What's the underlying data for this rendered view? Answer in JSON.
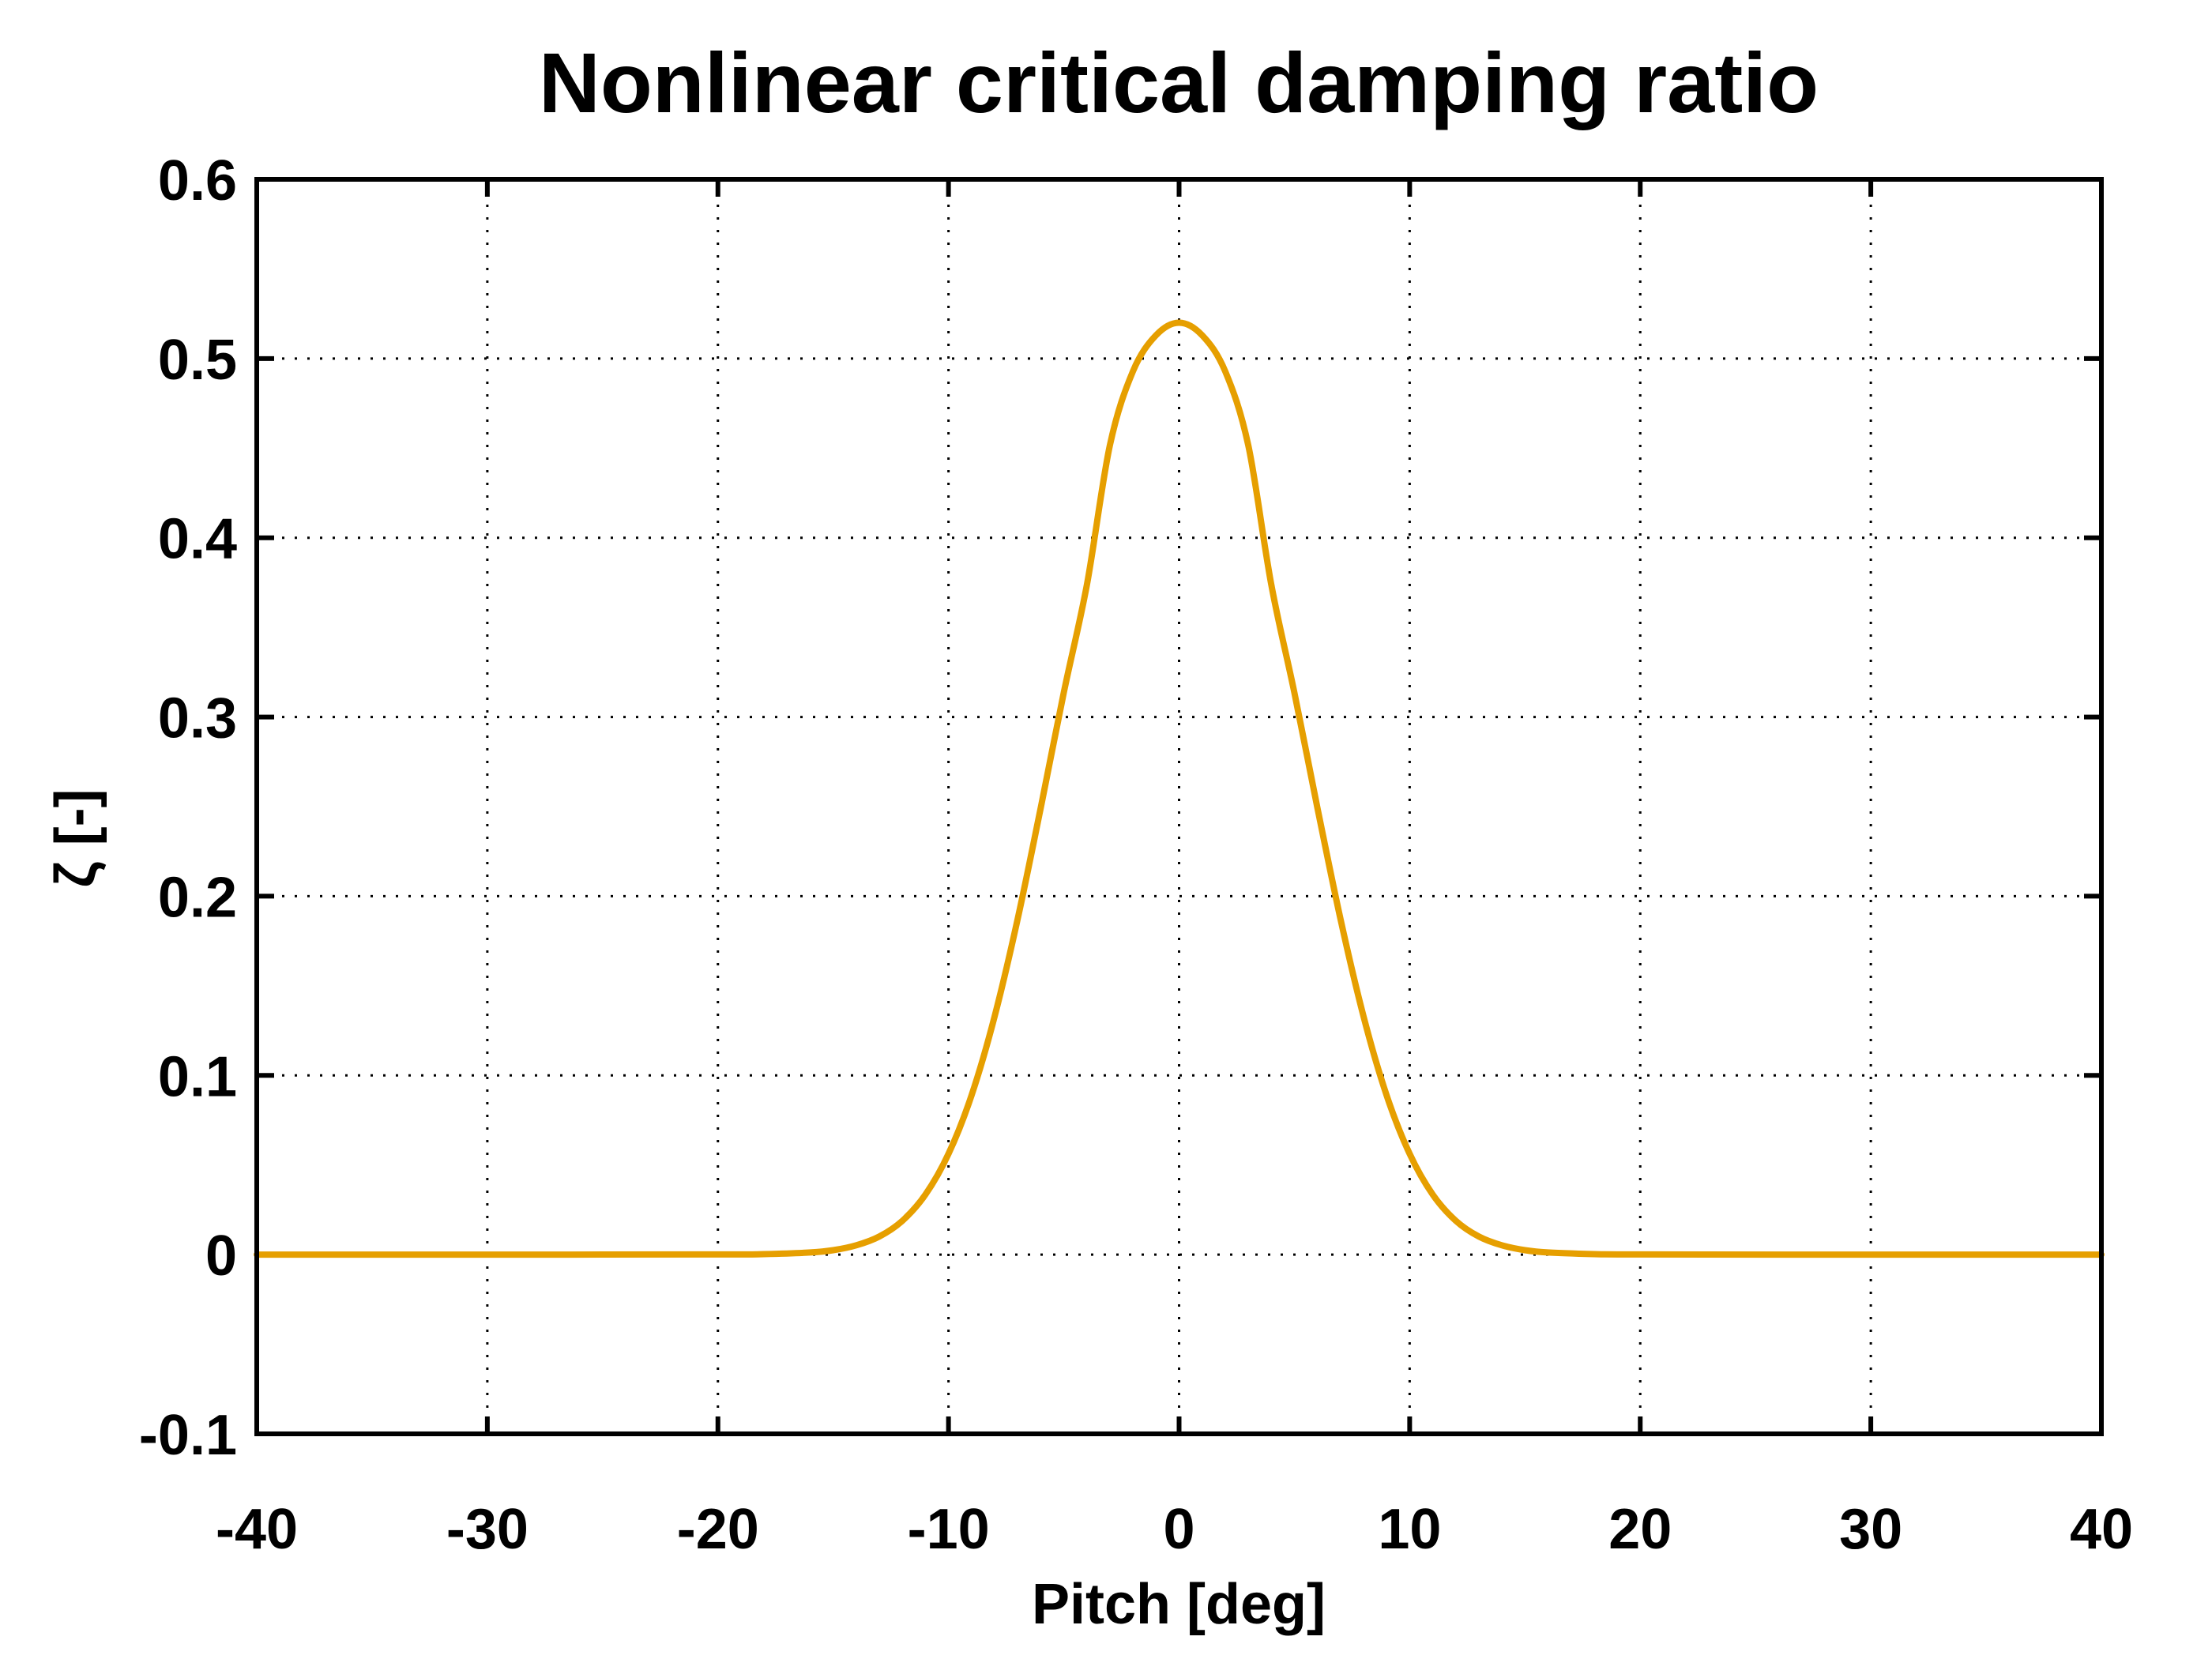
{
  "chart_data": {
    "type": "line",
    "title": "Nonlinear critical damping ratio",
    "xlabel": "Pitch [deg]",
    "ylabel": "ζ [-]",
    "xlim": [
      -40,
      40
    ],
    "ylim": [
      -0.1,
      0.6
    ],
    "xticks": [
      -40,
      -30,
      -20,
      -10,
      0,
      10,
      20,
      30,
      40
    ],
    "yticks": [
      -0.1,
      0,
      0.1,
      0.2,
      0.3,
      0.4,
      0.5,
      0.6
    ],
    "xtick_labels": [
      "-40",
      "-30",
      "-20",
      "-10",
      "0",
      "10",
      "20",
      "30",
      "40"
    ],
    "ytick_labels": [
      "-0.1",
      "0",
      "0.1",
      "0.2",
      "0.3",
      "0.4",
      "0.5",
      "0.6"
    ],
    "grid": true,
    "series": [
      {
        "name": "zeta",
        "color": "#E69F00",
        "x": [
          -40,
          -30,
          -20,
          -18,
          -16,
          -15,
          -14,
          -13,
          -12,
          -11,
          -10,
          -9,
          -8,
          -7,
          -6,
          -5,
          -4,
          -3,
          -2,
          -1,
          0,
          1,
          2,
          3,
          4,
          5,
          6,
          7,
          8,
          9,
          10,
          11,
          12,
          13,
          14,
          15,
          16,
          18,
          20,
          30,
          40
        ],
        "y": [
          0.0,
          0.0,
          0.0001,
          0.0003,
          0.0012,
          0.0025,
          0.0052,
          0.0101,
          0.0189,
          0.0335,
          0.0562,
          0.0889,
          0.1329,
          0.1873,
          0.2493,
          0.3137,
          0.3737,
          0.4516,
          0.4929,
          0.513,
          0.52,
          0.513,
          0.4929,
          0.4516,
          0.3737,
          0.3137,
          0.2493,
          0.1873,
          0.1329,
          0.0889,
          0.0562,
          0.0335,
          0.0189,
          0.0101,
          0.0052,
          0.0025,
          0.0012,
          0.0003,
          0.0001,
          0.0,
          0.0
        ]
      }
    ]
  }
}
